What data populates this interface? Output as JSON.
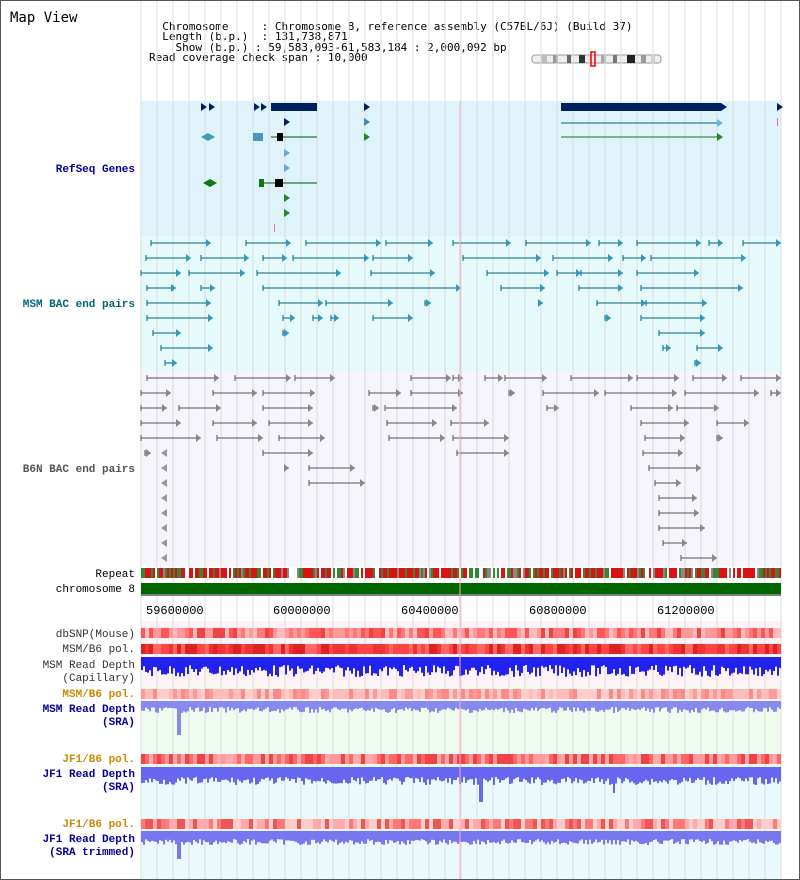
{
  "app_title": "Map View",
  "info": {
    "chromosome_key": "Chromosome",
    "chromosome_value": "Chromosome 8, reference assembly (C57BL/6J) (Build 37)",
    "length_key": "Length (b.p.)",
    "length_value": "131,738,871",
    "show_key": "Show (b.p.)",
    "show_value": "59,583,093-61,583,184 : 2,000,092 bp",
    "coverage_key": "Read coverage check span",
    "coverage_value": "10,000"
  },
  "tracks": {
    "refseq": "RefSeq Genes",
    "msm_bac": "MSM BAC end pairs",
    "b6n_bac": "B6N BAC end pairs",
    "repeat": "Repeat",
    "chromosome": "chromosome 8",
    "dbsnp": "dbSNP(Mouse)",
    "msm_b6_pol_1": "MSM/B6 pol.",
    "msm_depth_cap_1": "MSM Read Depth",
    "msm_depth_cap_2": "(Capillary)",
    "msm_b6_pol_2": "MSM/B6 pol.",
    "msm_depth_sra_1": "MSM Read Depth",
    "msm_depth_sra_2": "(SRA)",
    "jf1_pol_1": "JF1/B6 pol.",
    "jf1_depth_sra_1": "JF1 Read Depth",
    "jf1_depth_sra_2": "(SRA)",
    "jf1_pol_2": "JF1/B6 pol.",
    "jf1_trim_1": "JF1 Read Depth",
    "jf1_trim_2": "(SRA trimmed)"
  },
  "axis": {
    "ticks": [
      "59600000",
      "60000000",
      "60400000",
      "60800000",
      "61200000"
    ]
  },
  "colors": {
    "refseq_bg": "#dff3fb",
    "msm_bg": "#e6fafc",
    "b6n_bg": "#f3f3fb",
    "label_navy": "#000099",
    "label_teal": "#006677",
    "label_orange": "#cc8800",
    "depth_blue": "#2222ee",
    "depth_light": "#8888ee",
    "chrom_green": "#006600"
  }
}
